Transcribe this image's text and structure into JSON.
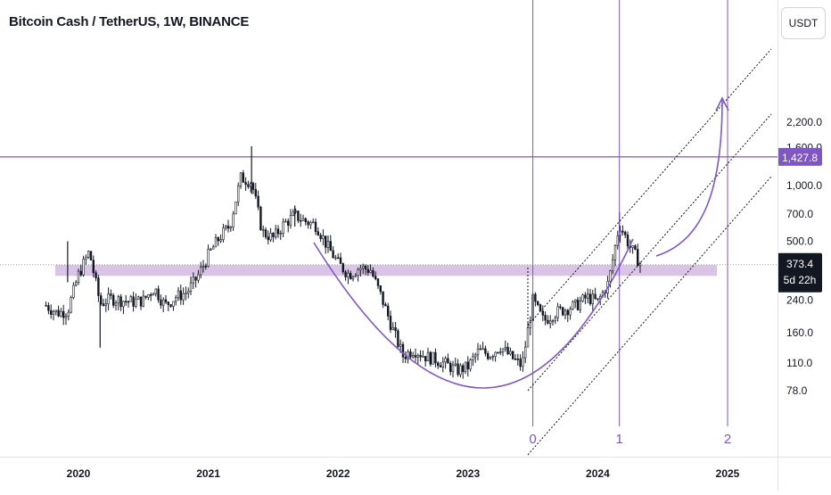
{
  "header": {
    "title": "Bitcoin Cash / TetherUS, 1W, BINANCE",
    "currency_button": "USDT"
  },
  "price_axis": {
    "ticks": [
      "2,200.0",
      "1,600.0",
      "1,000.0",
      "700.0",
      "500.0",
      "240.0",
      "160.0",
      "110.0",
      "78.0"
    ]
  },
  "time_axis": {
    "ticks": [
      "2020",
      "2021",
      "2022",
      "2023",
      "2024",
      "2025"
    ]
  },
  "labels": {
    "level_price": "1,427.8",
    "last_price": "373.4",
    "countdown": "5d 22h",
    "markers": [
      "0",
      "1",
      "2"
    ]
  },
  "colors": {
    "candle": "#131722",
    "purple": "#7e57c2",
    "zone": "rgba(186,145,210,0.55)",
    "axis_text": "#131722",
    "grid": "#e0e3eb"
  },
  "chart_data": {
    "type": "candlestick",
    "symbol": "BCHUSDT",
    "interval": "1W",
    "y_scale": "log",
    "ylim": [
      65,
      2500
    ],
    "series": [
      {
        "x": [
          "2019-10",
          "2019-11",
          "2019-12",
          "2020-01",
          "2020-02",
          "2020-03",
          "2020-04",
          "2020-05",
          "2020-06",
          "2020-07",
          "2020-08",
          "2020-09",
          "2020-10",
          "2020-11",
          "2020-12",
          "2021-01",
          "2021-02",
          "2021-03",
          "2021-04",
          "2021-05",
          "2021-06",
          "2021-07",
          "2021-08",
          "2021-09",
          "2021-10",
          "2021-11",
          "2021-12",
          "2022-01",
          "2022-02",
          "2022-03",
          "2022-04",
          "2022-05",
          "2022-06",
          "2022-07",
          "2022-08",
          "2022-09",
          "2022-10",
          "2022-11",
          "2022-12",
          "2023-01",
          "2023-02",
          "2023-03",
          "2023-04",
          "2023-05",
          "2023-06",
          "2023-07",
          "2023-08",
          "2023-09",
          "2023-10",
          "2023-11",
          "2023-12",
          "2024-01",
          "2024-02",
          "2024-03",
          "2024-04",
          "2024-05"
        ],
        "values": [
          225,
          205,
          210,
          330,
          440,
          230,
          245,
          240,
          235,
          240,
          280,
          225,
          250,
          265,
          320,
          420,
          520,
          610,
          1100,
          1050,
          560,
          520,
          620,
          690,
          640,
          610,
          470,
          380,
          330,
          360,
          350,
          250,
          170,
          120,
          130,
          120,
          115,
          108,
          100,
          105,
          128,
          122,
          135,
          118,
          106,
          240,
          185,
          205,
          215,
          225,
          250,
          235,
          300,
          620,
          465,
          373.4
        ]
      }
    ],
    "zone": [
      325,
      372
    ],
    "level": 1427.8,
    "markers": [
      {
        "label": "0",
        "x": "2023-07"
      },
      {
        "label": "1",
        "x": "2024-03"
      },
      {
        "label": "2",
        "x": "2025-01"
      }
    ]
  }
}
